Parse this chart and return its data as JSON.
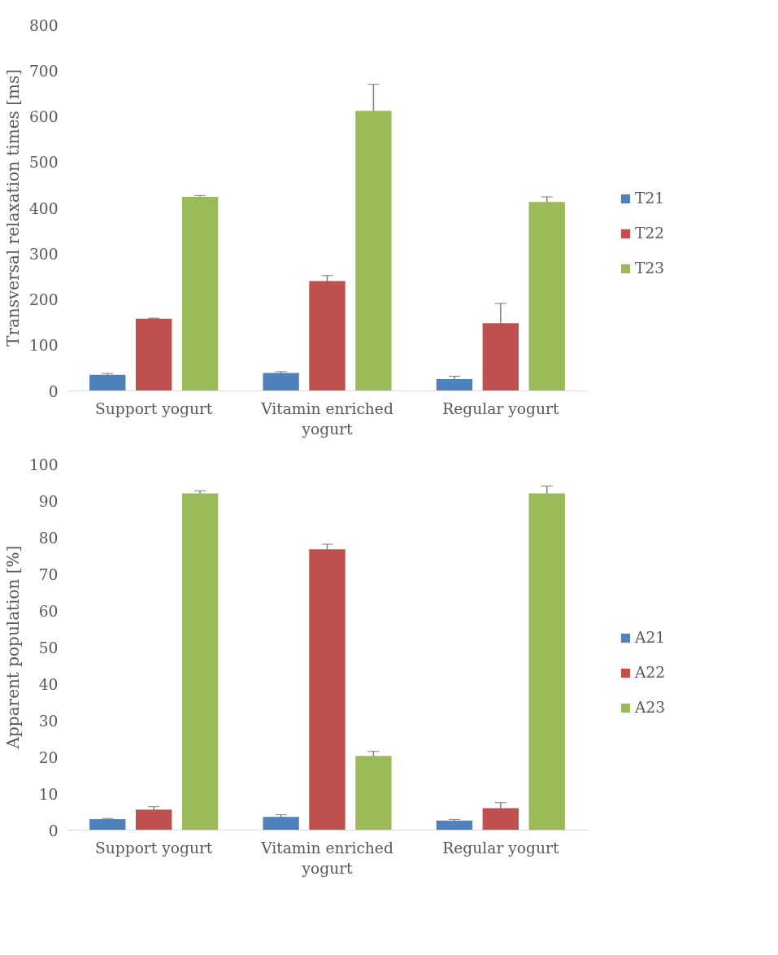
{
  "chart_data": [
    {
      "type": "bar",
      "ylabel": "Transversal relaxation times [ms]",
      "categories": [
        "Support yogurt",
        "Vitamin enriched yogurt",
        "Regular yogurt"
      ],
      "ylim": [
        0,
        800
      ],
      "yticks": [
        0,
        100,
        200,
        300,
        400,
        500,
        600,
        700,
        800
      ],
      "legend": "right",
      "series": [
        {
          "name": "T21",
          "color": "#4f81bd",
          "values": [
            35,
            39,
            26
          ],
          "errors": [
            3,
            3,
            6
          ]
        },
        {
          "name": "T22",
          "color": "#c0504d",
          "values": [
            158,
            240,
            148
          ],
          "errors": [
            1,
            12,
            43
          ]
        },
        {
          "name": "T23",
          "color": "#9bbb59",
          "values": [
            424,
            612,
            413
          ],
          "errors": [
            3,
            58,
            11
          ]
        }
      ]
    },
    {
      "type": "bar",
      "ylabel": "Apparent population [%]",
      "categories": [
        "Support yogurt",
        "Vitamin enriched yogurt",
        "Regular yogurt"
      ],
      "ylim": [
        0,
        100
      ],
      "yticks": [
        0,
        10,
        20,
        30,
        40,
        50,
        60,
        70,
        80,
        90,
        100
      ],
      "legend": "right",
      "series": [
        {
          "name": "A21",
          "color": "#4f81bd",
          "values": [
            3.0,
            3.6,
            2.6
          ],
          "errors": [
            0.2,
            0.6,
            0.3
          ]
        },
        {
          "name": "A22",
          "color": "#c0504d",
          "values": [
            5.6,
            76.7,
            6.0
          ],
          "errors": [
            0.8,
            1.4,
            1.5
          ]
        },
        {
          "name": "A23",
          "color": "#9bbb59",
          "values": [
            92.0,
            20.3,
            92.0
          ],
          "errors": [
            0.7,
            1.2,
            2.0
          ]
        }
      ]
    }
  ]
}
